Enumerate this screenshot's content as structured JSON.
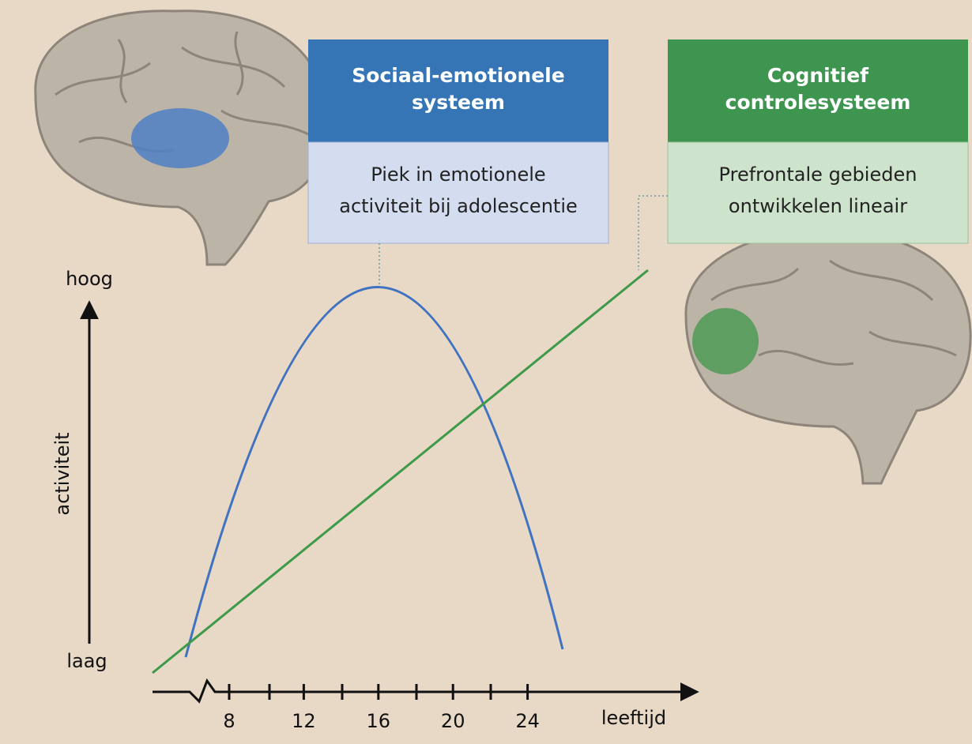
{
  "boxes": [
    {
      "title": [
        "Sociaal-emotionele",
        "systeem"
      ],
      "text": [
        "Piek in emotionele",
        "activiteit bij adolescentie"
      ]
    },
    {
      "title": [
        "Cognitief",
        "controlesysteem"
      ],
      "text": [
        "Prefrontale gebieden",
        "ontwikkelen lineair"
      ]
    }
  ],
  "axis": {
    "y_label": "activiteit",
    "y_high": "hoog",
    "y_low": "laag",
    "x_label": "leeftijd",
    "xticks": [
      8,
      12,
      16,
      20,
      24
    ]
  }
}
